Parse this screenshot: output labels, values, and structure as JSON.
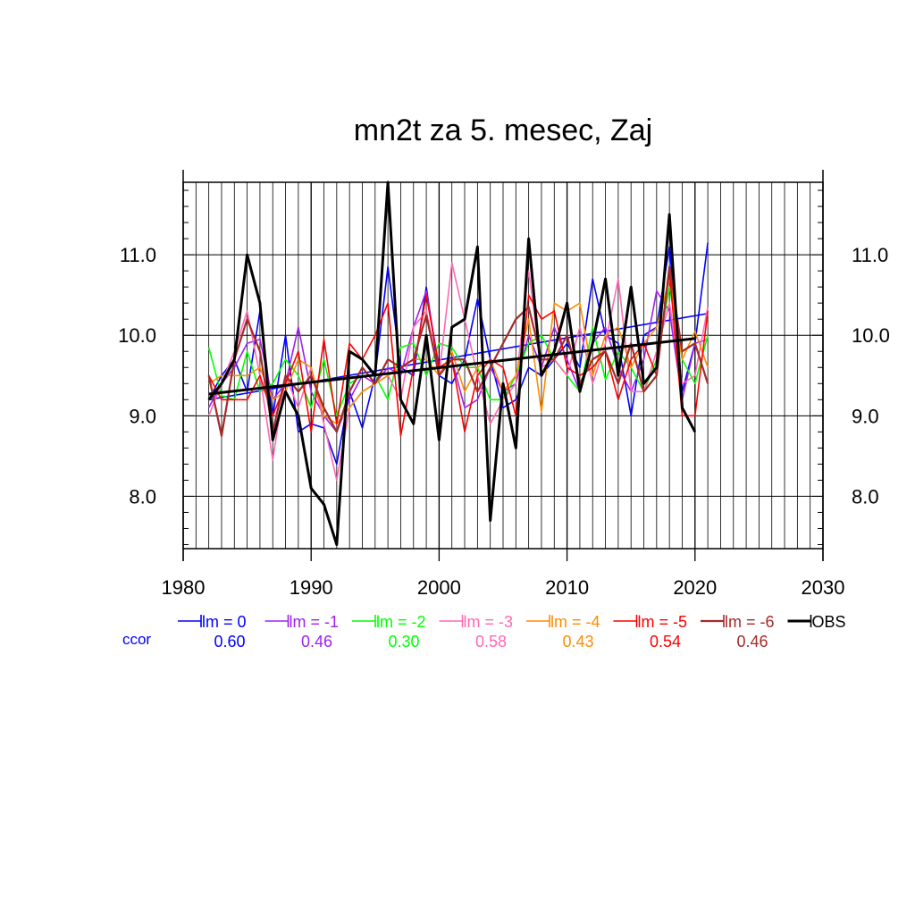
{
  "chart_data": {
    "type": "line",
    "title": "mn2t za 5. mesec, Zaj",
    "xlim": [
      1980,
      2030
    ],
    "ylim": [
      7.35,
      11.9
    ],
    "x_ticks": [
      1980,
      1990,
      2000,
      2010,
      2020,
      2030
    ],
    "x_tick_labels": [
      "1980",
      "1990",
      "2000",
      "2010",
      "2020",
      "2030"
    ],
    "y_ticks": [
      8.0,
      9.0,
      10.0,
      11.0
    ],
    "y_tick_labels": [
      "8.0",
      "9.0",
      "10.0",
      "11.0"
    ],
    "grid": true,
    "legend_position": "bottom",
    "ccor_label": "ccor",
    "ccor_color": "#0000ff",
    "series": [
      {
        "name": "lm = 0",
        "color": "#0000ff",
        "ccor": "0.60",
        "width": 1.6,
        "x": [
          1982,
          1983,
          1984,
          1985,
          1986,
          1987,
          1988,
          1989,
          1990,
          1991,
          1992,
          1993,
          1994,
          1995,
          1996,
          1997,
          1998,
          1999,
          2000,
          2001,
          2002,
          2003,
          2004,
          2005,
          2006,
          2007,
          2008,
          2009,
          2010,
          2011,
          2012,
          2013,
          2014,
          2015,
          2016,
          2017,
          2018,
          2019,
          2020,
          2021
        ],
        "y": [
          9.2,
          9.5,
          9.7,
          9.3,
          10.3,
          9.0,
          10.0,
          8.8,
          8.9,
          8.85,
          8.4,
          9.3,
          8.85,
          9.5,
          10.85,
          9.6,
          9.5,
          10.6,
          9.5,
          9.4,
          9.7,
          10.45,
          9.7,
          9.1,
          9.2,
          9.6,
          9.5,
          9.7,
          9.9,
          9.6,
          10.7,
          10.0,
          9.9,
          9.0,
          10.0,
          10.1,
          11.1,
          9.3,
          9.9,
          11.15
        ],
        "trend": [
          9.2,
          10.27
        ]
      },
      {
        "name": "lm = -1",
        "color": "#a020f0",
        "ccor": "0.46",
        "width": 1.6,
        "x": [
          1982,
          1983,
          1984,
          1985,
          1986,
          1987,
          1988,
          1989,
          1990,
          1991,
          1992,
          1993,
          1994,
          1995,
          1996,
          1997,
          1998,
          1999,
          2000,
          2001,
          2002,
          2003,
          2004,
          2005,
          2006,
          2007,
          2008,
          2009,
          2010,
          2011,
          2012,
          2013,
          2014,
          2015,
          2016,
          2017,
          2018,
          2019,
          2020,
          2021
        ],
        "y": [
          9.1,
          9.4,
          9.6,
          9.9,
          9.95,
          9.2,
          9.4,
          10.1,
          9.3,
          9.0,
          8.8,
          9.2,
          9.5,
          9.4,
          9.6,
          9.5,
          10.1,
          10.55,
          9.6,
          9.7,
          9.1,
          9.2,
          9.6,
          9.3,
          9.4,
          10.0,
          9.6,
          10.1,
          9.7,
          9.3,
          9.9,
          10.1,
          9.6,
          9.3,
          9.7,
          10.55,
          10.3,
          9.2,
          9.9,
          9.95
        ]
      },
      {
        "name": "lm = -2",
        "color": "#00ff00",
        "ccor": "0.30",
        "width": 1.6,
        "x": [
          1982,
          1983,
          1984,
          1985,
          1986,
          1987,
          1988,
          1989,
          1990,
          1991,
          1992,
          1993,
          1994,
          1995,
          1996,
          1997,
          1998,
          1999,
          2000,
          2001,
          2002,
          2003,
          2004,
          2005,
          2006,
          2007,
          2008,
          2009,
          2010,
          2011,
          2012,
          2013,
          2014,
          2015,
          2016,
          2017,
          2018,
          2019,
          2020,
          2021
        ],
        "y": [
          9.85,
          9.25,
          9.2,
          9.8,
          9.3,
          9.4,
          9.7,
          9.5,
          9.1,
          9.7,
          9.0,
          9.4,
          9.5,
          9.5,
          9.2,
          9.85,
          9.9,
          9.5,
          9.9,
          9.85,
          9.6,
          9.6,
          9.2,
          9.2,
          9.5,
          9.9,
          10.0,
          9.7,
          9.5,
          9.3,
          10.1,
          9.45,
          9.8,
          9.6,
          9.3,
          9.7,
          10.6,
          9.7,
          9.4,
          10.0
        ]
      },
      {
        "name": "lm = -3",
        "color": "#ff69b4",
        "ccor": "0.58",
        "width": 1.6,
        "x": [
          1982,
          1983,
          1984,
          1985,
          1986,
          1987,
          1988,
          1989,
          1990,
          1991,
          1992,
          1993,
          1994,
          1995,
          1996,
          1997,
          1998,
          1999,
          2000,
          2001,
          2002,
          2003,
          2004,
          2005,
          2006,
          2007,
          2008,
          2009,
          2010,
          2011,
          2012,
          2013,
          2014,
          2015,
          2016,
          2017,
          2018,
          2019,
          2020,
          2021
        ],
        "y": [
          9.0,
          9.4,
          9.8,
          10.3,
          9.5,
          8.45,
          9.5,
          9.1,
          9.6,
          8.9,
          8.2,
          9.1,
          9.3,
          9.4,
          9.5,
          9.2,
          10.1,
          10.3,
          9.5,
          10.9,
          10.2,
          9.5,
          8.9,
          9.2,
          9.4,
          10.8,
          9.6,
          9.7,
          9.5,
          10.1,
          9.4,
          9.9,
          10.7,
          9.3,
          9.3,
          9.8,
          10.4,
          9.4,
          9.5,
          10.35
        ]
      },
      {
        "name": "lm = -4",
        "color": "#ff8c00",
        "ccor": "0.43",
        "width": 1.6,
        "x": [
          1982,
          1983,
          1984,
          1985,
          1986,
          1987,
          1988,
          1989,
          1990,
          1991,
          1992,
          1993,
          1994,
          1995,
          1996,
          1997,
          1998,
          1999,
          2000,
          2001,
          2002,
          2003,
          2004,
          2005,
          2006,
          2007,
          2008,
          2009,
          2010,
          2011,
          2012,
          2013,
          2014,
          2015,
          2016,
          2017,
          2018,
          2019,
          2020,
          2021
        ],
        "y": [
          9.4,
          9.5,
          9.5,
          9.5,
          9.6,
          9.2,
          9.3,
          9.7,
          9.6,
          9.0,
          8.9,
          9.1,
          9.3,
          9.4,
          9.5,
          9.6,
          9.7,
          9.7,
          9.5,
          9.8,
          9.3,
          9.6,
          9.7,
          9.3,
          9.5,
          10.2,
          9.05,
          10.4,
          10.3,
          10.4,
          9.5,
          10.0,
          10.1,
          9.6,
          9.9,
          10.1,
          10.7,
          9.7,
          10.05,
          9.6
        ]
      },
      {
        "name": "lm = -5",
        "color": "#ff0000",
        "ccor": "0.54",
        "width": 1.6,
        "x": [
          1982,
          1983,
          1984,
          1985,
          1986,
          1987,
          1988,
          1989,
          1990,
          1991,
          1992,
          1993,
          1994,
          1995,
          1996,
          1997,
          1998,
          1999,
          2000,
          2001,
          2002,
          2003,
          2004,
          2005,
          2006,
          2007,
          2008,
          2009,
          2010,
          2011,
          2012,
          2013,
          2014,
          2015,
          2016,
          2017,
          2018,
          2019,
          2020,
          2021
        ],
        "y": [
          9.5,
          9.2,
          9.2,
          9.2,
          9.5,
          9.0,
          9.4,
          9.8,
          8.8,
          9.95,
          8.9,
          9.9,
          9.7,
          10.0,
          10.4,
          8.75,
          9.6,
          10.5,
          9.6,
          9.7,
          8.8,
          9.5,
          9.7,
          9.6,
          9.0,
          10.5,
          10.2,
          10.3,
          9.6,
          9.5,
          9.6,
          9.8,
          9.2,
          9.7,
          9.9,
          9.5,
          10.8,
          9.0,
          9.0,
          10.3
        ]
      },
      {
        "name": "lm = -6",
        "color": "#a52a2a",
        "ccor": "0.46",
        "width": 2.2,
        "x": [
          1982,
          1983,
          1984,
          1985,
          1986,
          1987,
          1988,
          1989,
          1990,
          1991,
          1992,
          1993,
          1994,
          1995,
          1996,
          1997,
          1998,
          1999,
          2000,
          2001,
          2002,
          2003,
          2004,
          2005,
          2006,
          2007,
          2008,
          2009,
          2010,
          2011,
          2012,
          2013,
          2014,
          2015,
          2016,
          2017,
          2018,
          2019,
          2020,
          2021
        ],
        "y": [
          9.5,
          8.75,
          9.7,
          10.2,
          9.8,
          8.8,
          9.5,
          9.3,
          9.5,
          9.1,
          8.8,
          9.3,
          9.6,
          9.4,
          9.7,
          9.6,
          9.7,
          10.25,
          9.5,
          9.7,
          9.7,
          9.3,
          9.6,
          9.9,
          10.2,
          10.35,
          9.7,
          9.7,
          10.0,
          9.4,
          9.7,
          9.8,
          9.4,
          9.9,
          9.3,
          9.5,
          10.85,
          9.8,
          9.9,
          9.4
        ]
      },
      {
        "name": "OBS",
        "color": "#000000",
        "ccor": "",
        "width": 3,
        "x": [
          1982,
          1983,
          1984,
          1985,
          1986,
          1987,
          1988,
          1989,
          1990,
          1991,
          1992,
          1993,
          1994,
          1995,
          1996,
          1997,
          1998,
          1999,
          2000,
          2001,
          2002,
          2003,
          2004,
          2005,
          2006,
          2007,
          2008,
          2009,
          2010,
          2011,
          2012,
          2013,
          2014,
          2015,
          2016,
          2017,
          2018,
          2019,
          2020
        ],
        "y": [
          9.2,
          9.4,
          9.7,
          11.0,
          10.4,
          8.7,
          9.3,
          9.0,
          8.1,
          7.9,
          7.4,
          9.8,
          9.7,
          9.5,
          11.9,
          9.2,
          8.9,
          10.0,
          8.7,
          10.1,
          10.2,
          11.1,
          7.7,
          9.4,
          8.6,
          11.2,
          9.5,
          9.8,
          10.4,
          9.3,
          9.9,
          10.7,
          9.5,
          10.6,
          9.4,
          9.6,
          11.5,
          9.1,
          8.8
        ],
        "trend": [
          9.27,
          9.96
        ]
      }
    ]
  }
}
